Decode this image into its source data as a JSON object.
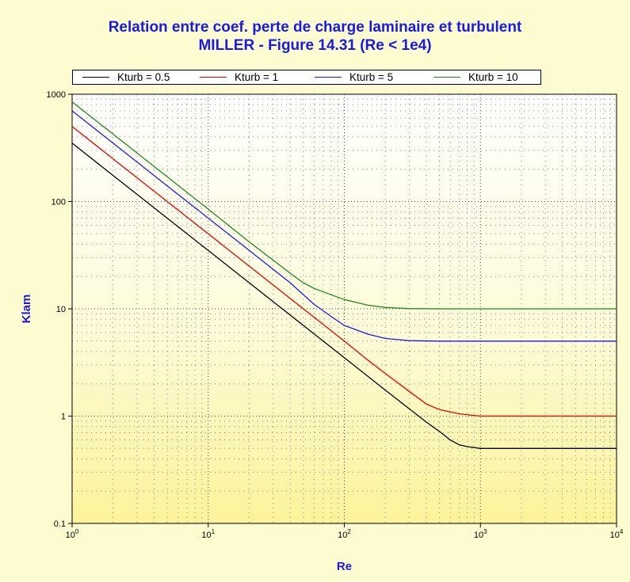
{
  "chart_data": {
    "type": "line",
    "title": "Relation entre coef. perte de charge laminaire et turbulent",
    "subtitle": "MILLER - Figure 14.31 (Re < 1e4)",
    "xlabel": "Re",
    "ylabel": "Klam",
    "x_scale": "log",
    "y_scale": "log",
    "xlim": [
      1,
      10000
    ],
    "ylim": [
      0.1,
      1000
    ],
    "x_ticks": [
      {
        "value": 1,
        "base": "10",
        "exp": "0"
      },
      {
        "value": 10,
        "base": "10",
        "exp": "1"
      },
      {
        "value": 100,
        "base": "10",
        "exp": "2"
      },
      {
        "value": 1000,
        "base": "10",
        "exp": "3"
      },
      {
        "value": 10000,
        "base": "10",
        "exp": "4"
      }
    ],
    "y_ticks": [
      {
        "value": 0.1,
        "label": "0.1"
      },
      {
        "value": 1,
        "label": "1"
      },
      {
        "value": 10,
        "label": "10"
      },
      {
        "value": 100,
        "label": "100"
      },
      {
        "value": 1000,
        "label": "1000"
      }
    ],
    "grid": true,
    "legend_position": "top",
    "series": [
      {
        "name": "Kturb = 0.5",
        "color": "#000000",
        "x": [
          1,
          2,
          5,
          10,
          20,
          50,
          100,
          200,
          300,
          400,
          500,
          600,
          700,
          800,
          1000,
          2000,
          5000,
          10000
        ],
        "y": [
          350,
          175,
          70,
          35,
          17.5,
          7,
          3.5,
          1.75,
          1.17,
          0.88,
          0.72,
          0.6,
          0.54,
          0.52,
          0.5,
          0.5,
          0.5,
          0.5
        ]
      },
      {
        "name": "Kturb = 1",
        "color": "#e60000",
        "x": [
          1,
          2,
          5,
          10,
          20,
          50,
          100,
          150,
          200,
          300,
          400,
          500,
          700,
          1000,
          2000,
          5000,
          10000
        ],
        "y": [
          500,
          250,
          100,
          50,
          25,
          10,
          5,
          3.3,
          2.5,
          1.7,
          1.3,
          1.15,
          1.05,
          1.0,
          1.0,
          1.0,
          1.0
        ]
      },
      {
        "name": "Kturb = 5",
        "color": "#1a1ae6",
        "x": [
          1,
          2,
          5,
          10,
          20,
          40,
          60,
          80,
          100,
          150,
          200,
          300,
          500,
          1000,
          2000,
          5000,
          10000
        ],
        "y": [
          700,
          350,
          140,
          70,
          35,
          17.5,
          11,
          8.5,
          7,
          5.8,
          5.3,
          5.05,
          5,
          5,
          5,
          5,
          5
        ]
      },
      {
        "name": "Kturb = 10",
        "color": "#1a8a1a",
        "x": [
          1,
          2,
          5,
          10,
          20,
          40,
          50,
          60,
          80,
          100,
          150,
          200,
          300,
          500,
          1000,
          2000,
          5000,
          10000
        ],
        "y": [
          850,
          425,
          170,
          85,
          42,
          21.5,
          17.5,
          15.5,
          13.5,
          12.2,
          10.8,
          10.3,
          10.05,
          10,
          10,
          10,
          10,
          10
        ]
      }
    ]
  }
}
